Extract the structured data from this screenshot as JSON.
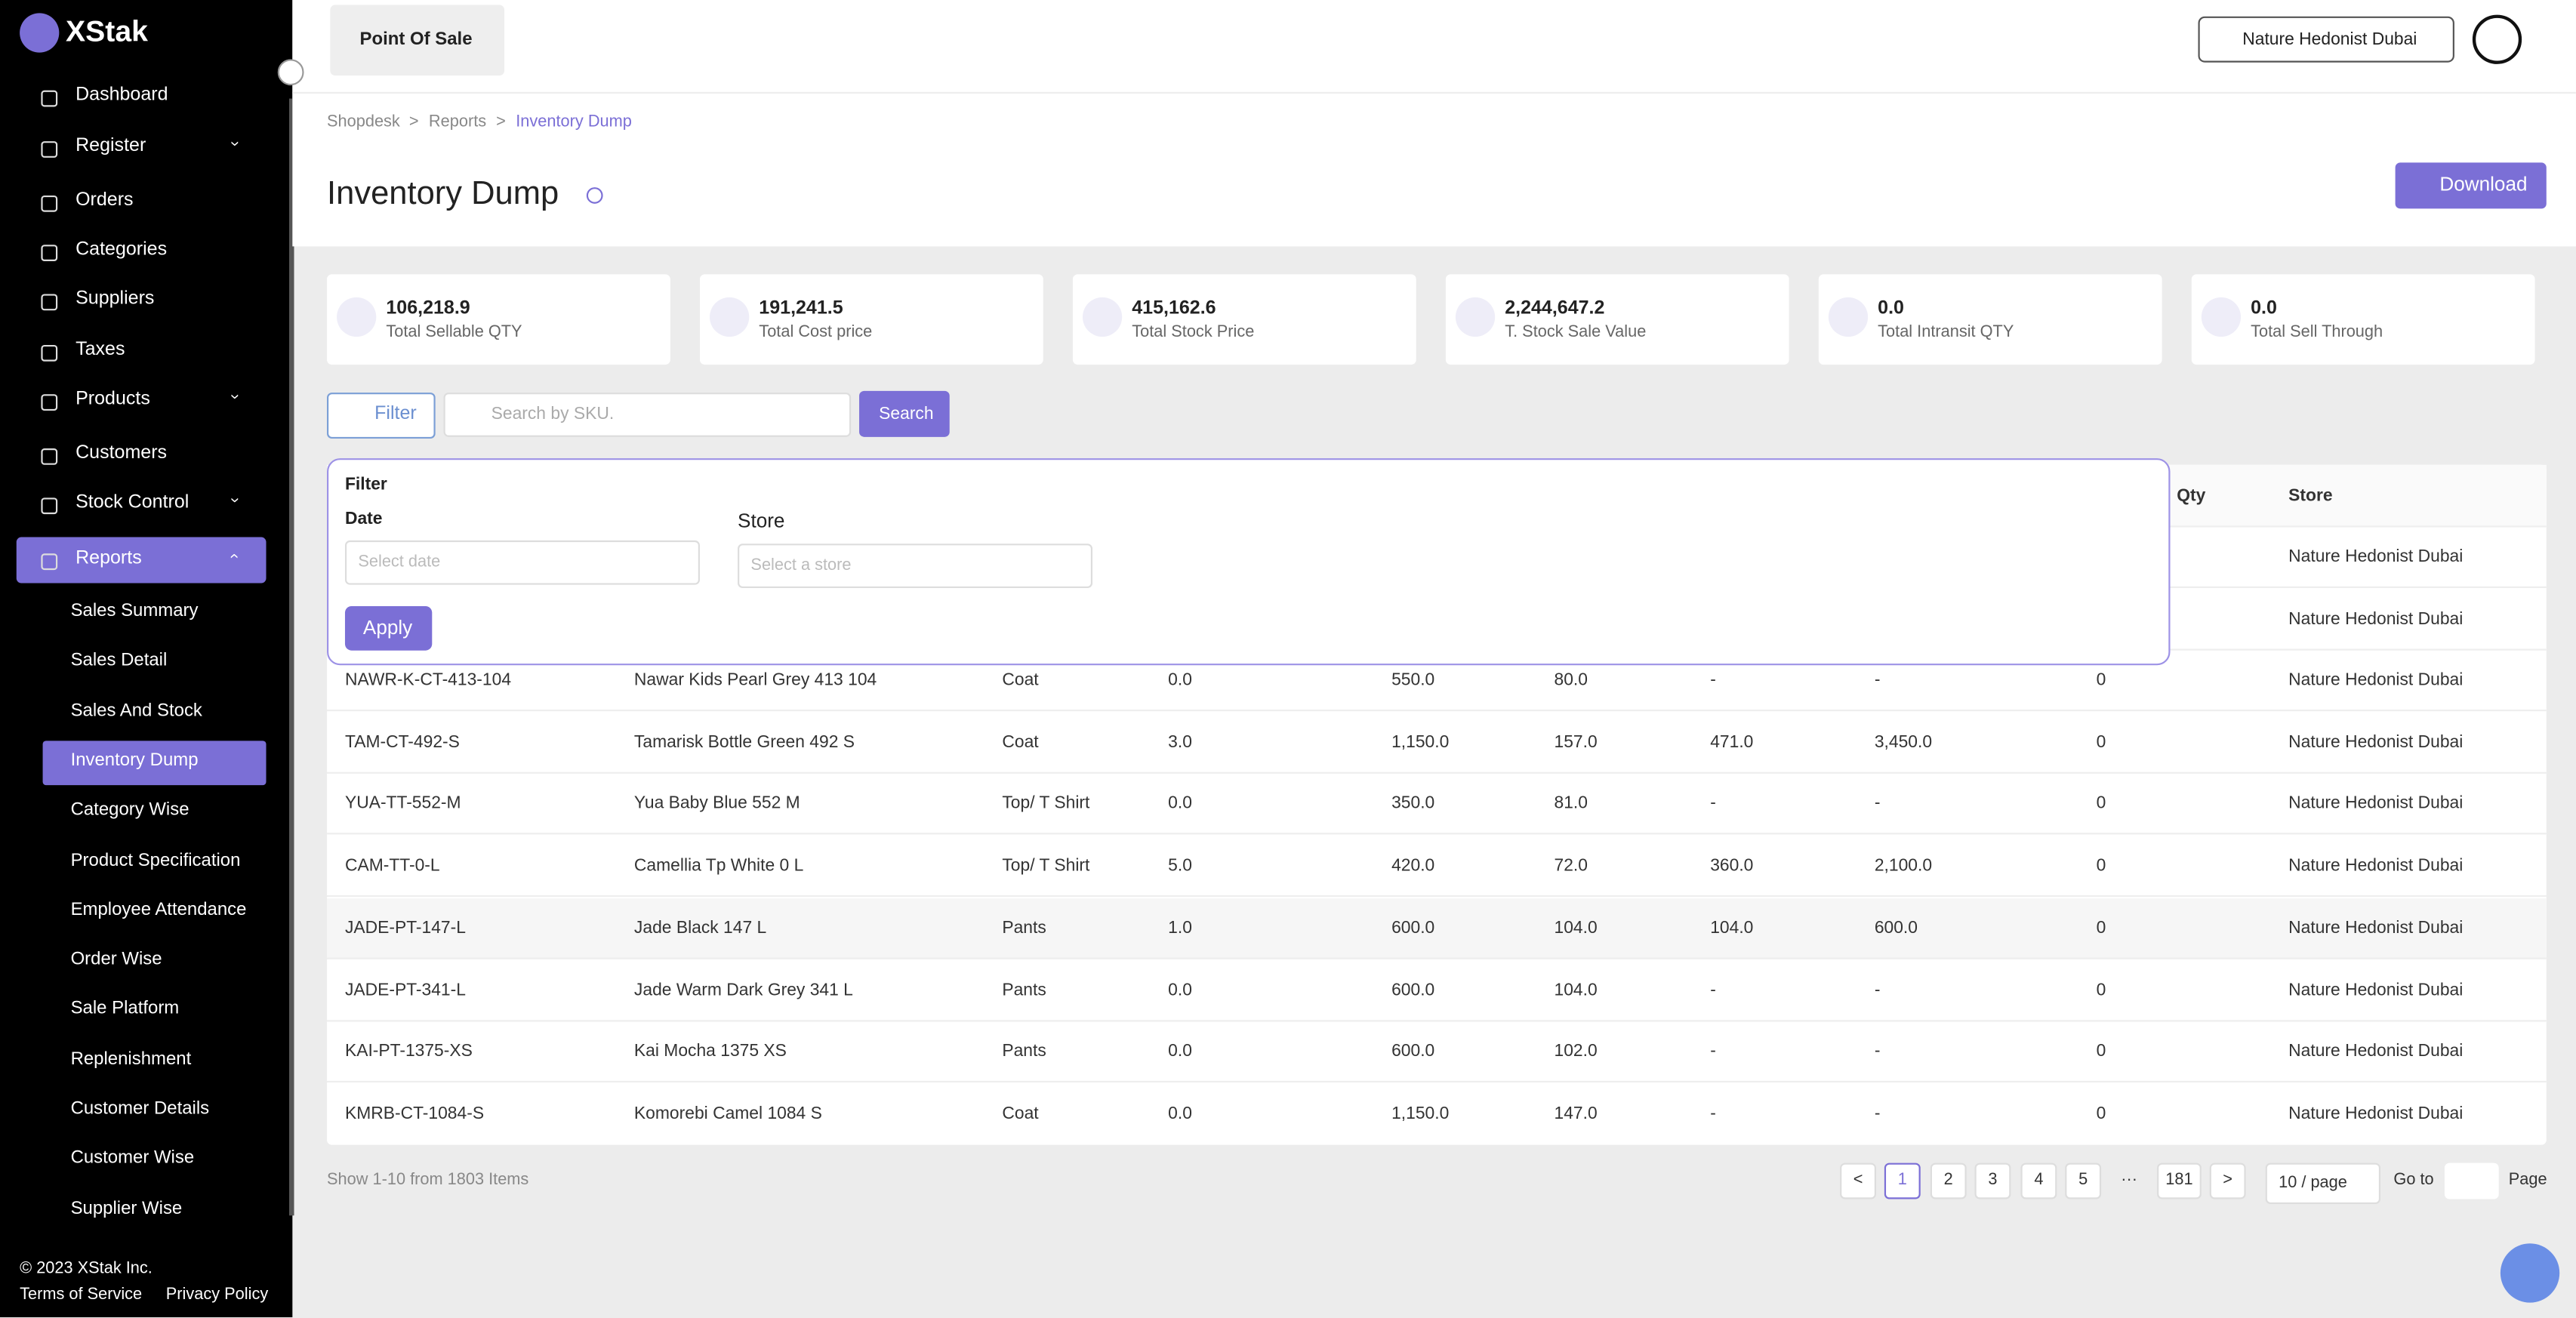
{
  "brand": "XStak",
  "nav": [
    {
      "label": "Dashboard"
    },
    {
      "label": "Register",
      "has_children": true
    },
    {
      "label": "Orders"
    },
    {
      "label": "Categories"
    },
    {
      "label": "Suppliers"
    },
    {
      "label": "Taxes"
    },
    {
      "label": "Products",
      "has_children": true
    },
    {
      "label": "Customers"
    },
    {
      "label": "Stock Control",
      "has_children": true
    },
    {
      "label": "Reports",
      "has_children": true,
      "active": true
    }
  ],
  "reports_menu": [
    "Sales Summary",
    "Sales Detail",
    "Sales And Stock",
    "Inventory Dump",
    "Category Wise",
    "Product Specification",
    "Employee Attendance",
    "Order Wise",
    "Sale Platform",
    "Replenishment",
    "Customer Details",
    "Customer Wise",
    "Supplier Wise"
  ],
  "reports_active": 3,
  "footer": {
    "copyright": "© 2023 XStak Inc.",
    "terms": "Terms of Service",
    "privacy": "Privacy Policy"
  },
  "header": {
    "app": "Point Of Sale",
    "store": "Nature Hedonist Dubai"
  },
  "breadcrumbs": [
    "Shopdesk",
    "Reports",
    "Inventory Dump"
  ],
  "breadcrumb_sep": ">",
  "title": "Inventory Dump",
  "download": "Download",
  "stats": [
    {
      "value": "106,218.9",
      "label": "Total Sellable QTY"
    },
    {
      "value": "191,241.5",
      "label": "Total Cost price"
    },
    {
      "value": "415,162.6",
      "label": "Total Stock Price"
    },
    {
      "value": "2,244,647.2",
      "label": "T. Stock Sale Value"
    },
    {
      "value": "0.0",
      "label": "Total Intransit QTY"
    },
    {
      "value": "0.0",
      "label": "Total Sell Through"
    }
  ],
  "toolbar": {
    "filter": "Filter",
    "search_placeholder": "Search by SKU.",
    "search": "Search"
  },
  "filter_panel": {
    "title": "Filter",
    "date_label": "Date",
    "date_placeholder": "Select date",
    "store_label": "Store",
    "store_placeholder": "Select a store",
    "apply": "Apply"
  },
  "table": {
    "visible_headers": [
      "Qty",
      "Store"
    ],
    "partial_rows": [
      "Nature Hedonist Dubai",
      "Nature Hedonist Dubai"
    ],
    "rows": [
      [
        "NAWR-K-CT-413-104",
        "Nawar Kids Pearl Grey 413 104",
        "Coat",
        "0.0",
        "550.0",
        "80.0",
        "-",
        "-",
        "0",
        "Nature Hedonist Dubai"
      ],
      [
        "TAM-CT-492-S",
        "Tamarisk Bottle Green 492 S",
        "Coat",
        "3.0",
        "1,150.0",
        "157.0",
        "471.0",
        "3,450.0",
        "0",
        "Nature Hedonist Dubai"
      ],
      [
        "YUA-TT-552-M",
        "Yua Baby Blue 552 M",
        "Top/ T Shirt",
        "0.0",
        "350.0",
        "81.0",
        "-",
        "-",
        "0",
        "Nature Hedonist Dubai"
      ],
      [
        "CAM-TT-0-L",
        "Camellia Tp White 0 L",
        "Top/ T Shirt",
        "5.0",
        "420.0",
        "72.0",
        "360.0",
        "2,100.0",
        "0",
        "Nature Hedonist Dubai"
      ],
      [
        "JADE-PT-147-L",
        "Jade Black 147 L",
        "Pants",
        "1.0",
        "600.0",
        "104.0",
        "104.0",
        "600.0",
        "0",
        "Nature Hedonist Dubai"
      ],
      [
        "JADE-PT-341-L",
        "Jade Warm Dark Grey 341 L",
        "Pants",
        "0.0",
        "600.0",
        "104.0",
        "-",
        "-",
        "0",
        "Nature Hedonist Dubai"
      ],
      [
        "KAI-PT-1375-XS",
        "Kai Mocha 1375 XS",
        "Pants",
        "0.0",
        "600.0",
        "102.0",
        "-",
        "-",
        "0",
        "Nature Hedonist Dubai"
      ],
      [
        "KMRB-CT-1084-S",
        "Komorebi Camel 1084 S",
        "Coat",
        "0.0",
        "1,150.0",
        "147.0",
        "-",
        "-",
        "0",
        "Nature Hedonist Dubai"
      ]
    ]
  },
  "pagination": {
    "summary": "Show 1-10 from 1803 Items",
    "pages": [
      "1",
      "2",
      "3",
      "4",
      "5",
      "···",
      "181"
    ],
    "current": 0,
    "prev": "<",
    "next": ">",
    "page_size": "10 / page",
    "goto": "Go to",
    "page": "Page"
  }
}
